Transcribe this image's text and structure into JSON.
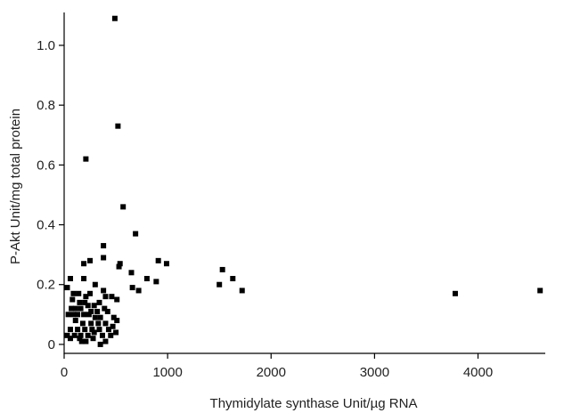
{
  "chart_data": {
    "type": "scatter",
    "title": "",
    "xlabel": "Thymidylate synthase Unit/µg RNA",
    "ylabel": "P-Akt Unit/mg total protein",
    "xlim": [
      0,
      4650
    ],
    "ylim": [
      -0.03,
      1.11
    ],
    "xticks": [
      0,
      1000,
      2000,
      3000,
      4000
    ],
    "yticks": [
      0.0,
      0.2,
      0.4,
      0.6,
      0.8,
      1.0
    ],
    "xtick_labels": [
      "0",
      "1000",
      "2000",
      "3000",
      "4000"
    ],
    "ytick_labels": [
      "0",
      "0.2",
      "0.4",
      "0.6",
      "0.8",
      "1.0"
    ],
    "grid": false,
    "marker_color": "#000000",
    "points": [
      [
        490,
        1.09
      ],
      [
        520,
        0.73
      ],
      [
        210,
        0.62
      ],
      [
        570,
        0.46
      ],
      [
        690,
        0.37
      ],
      [
        380,
        0.33
      ],
      [
        380,
        0.29
      ],
      [
        250,
        0.28
      ],
      [
        190,
        0.27
      ],
      [
        540,
        0.27
      ],
      [
        530,
        0.26
      ],
      [
        910,
        0.28
      ],
      [
        990,
        0.27
      ],
      [
        1530,
        0.25
      ],
      [
        1630,
        0.22
      ],
      [
        1500,
        0.2
      ],
      [
        1720,
        0.18
      ],
      [
        3780,
        0.17
      ],
      [
        4600,
        0.18
      ],
      [
        650,
        0.24
      ],
      [
        800,
        0.22
      ],
      [
        890,
        0.21
      ],
      [
        660,
        0.19
      ],
      [
        720,
        0.18
      ],
      [
        60,
        0.22
      ],
      [
        190,
        0.22
      ],
      [
        30,
        0.19
      ],
      [
        90,
        0.17
      ],
      [
        140,
        0.17
      ],
      [
        210,
        0.16
      ],
      [
        250,
        0.17
      ],
      [
        300,
        0.2
      ],
      [
        380,
        0.18
      ],
      [
        400,
        0.16
      ],
      [
        460,
        0.16
      ],
      [
        510,
        0.15
      ],
      [
        80,
        0.15
      ],
      [
        150,
        0.14
      ],
      [
        200,
        0.14
      ],
      [
        230,
        0.13
      ],
      [
        290,
        0.13
      ],
      [
        340,
        0.14
      ],
      [
        390,
        0.12
      ],
      [
        70,
        0.12
      ],
      [
        110,
        0.12
      ],
      [
        160,
        0.12
      ],
      [
        260,
        0.11
      ],
      [
        320,
        0.11
      ],
      [
        420,
        0.11
      ],
      [
        40,
        0.1
      ],
      [
        90,
        0.1
      ],
      [
        130,
        0.1
      ],
      [
        190,
        0.1
      ],
      [
        240,
        0.1
      ],
      [
        300,
        0.09
      ],
      [
        350,
        0.09
      ],
      [
        480,
        0.09
      ],
      [
        510,
        0.08
      ],
      [
        110,
        0.08
      ],
      [
        180,
        0.07
      ],
      [
        260,
        0.07
      ],
      [
        330,
        0.07
      ],
      [
        400,
        0.07
      ],
      [
        470,
        0.06
      ],
      [
        60,
        0.05
      ],
      [
        130,
        0.05
      ],
      [
        200,
        0.05
      ],
      [
        270,
        0.05
      ],
      [
        340,
        0.05
      ],
      [
        430,
        0.05
      ],
      [
        500,
        0.04
      ],
      [
        30,
        0.03
      ],
      [
        100,
        0.03
      ],
      [
        160,
        0.03
      ],
      [
        230,
        0.03
      ],
      [
        290,
        0.04
      ],
      [
        370,
        0.03
      ],
      [
        450,
        0.03
      ],
      [
        60,
        0.02
      ],
      [
        150,
        0.02
      ],
      [
        280,
        0.02
      ],
      [
        170,
        0.01
      ],
      [
        210,
        0.01
      ],
      [
        350,
        0.0
      ],
      [
        400,
        0.01
      ]
    ]
  }
}
